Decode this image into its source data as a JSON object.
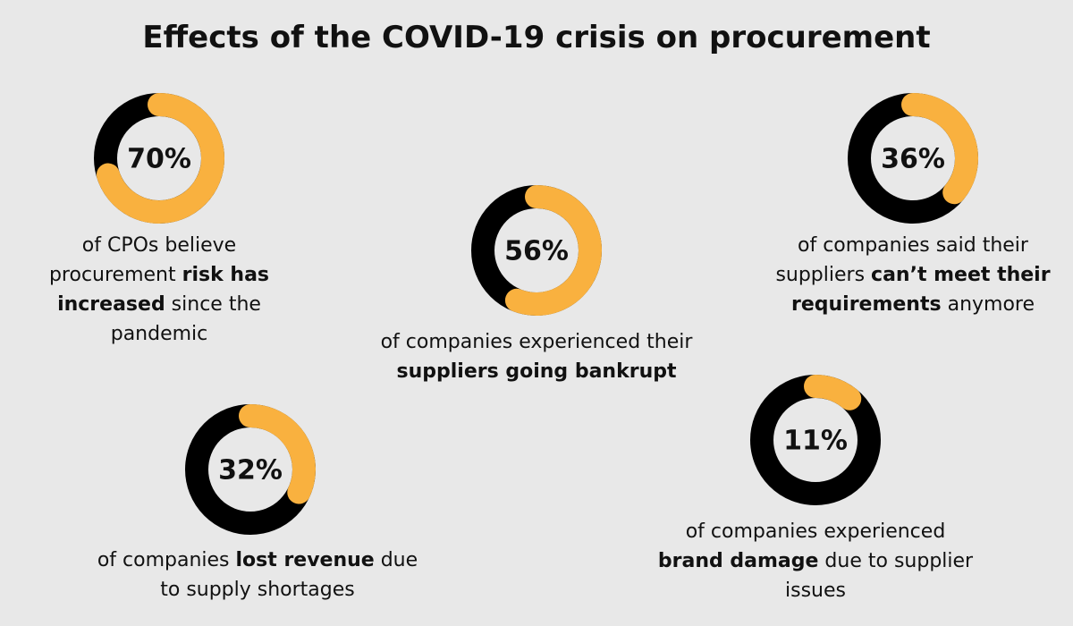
{
  "title": "Effects of the COVID-19 crisis on procurement",
  "colors": {
    "value": "#f9b13f",
    "track": "#000000"
  },
  "stats": [
    {
      "value": 70,
      "value_label": "70%",
      "text": [
        {
          "text": "of CPOs believe procurement "
        },
        {
          "text": "risk has increased",
          "bold": true
        },
        {
          "text": " since the pandemic"
        }
      ]
    },
    {
      "value": 56,
      "value_label": "56%",
      "text": [
        {
          "text": "of companies experienced their "
        },
        {
          "text": "suppliers going bankrupt",
          "bold": true
        }
      ]
    },
    {
      "value": 36,
      "value_label": "36%",
      "text": [
        {
          "text": "of companies said their suppliers "
        },
        {
          "text": "can’t meet their requirements",
          "bold": true
        },
        {
          "text": " anymore"
        }
      ]
    },
    {
      "value": 32,
      "value_label": "32%",
      "text": [
        {
          "text": "of companies "
        },
        {
          "text": "lost revenue",
          "bold": true
        },
        {
          "text": " due to supply shortages"
        }
      ]
    },
    {
      "value": 11,
      "value_label": "11%",
      "text": [
        {
          "text": "of companies experienced "
        },
        {
          "text": "brand damage",
          "bold": true
        },
        {
          "text": " due to supplier issues"
        }
      ]
    }
  ]
}
